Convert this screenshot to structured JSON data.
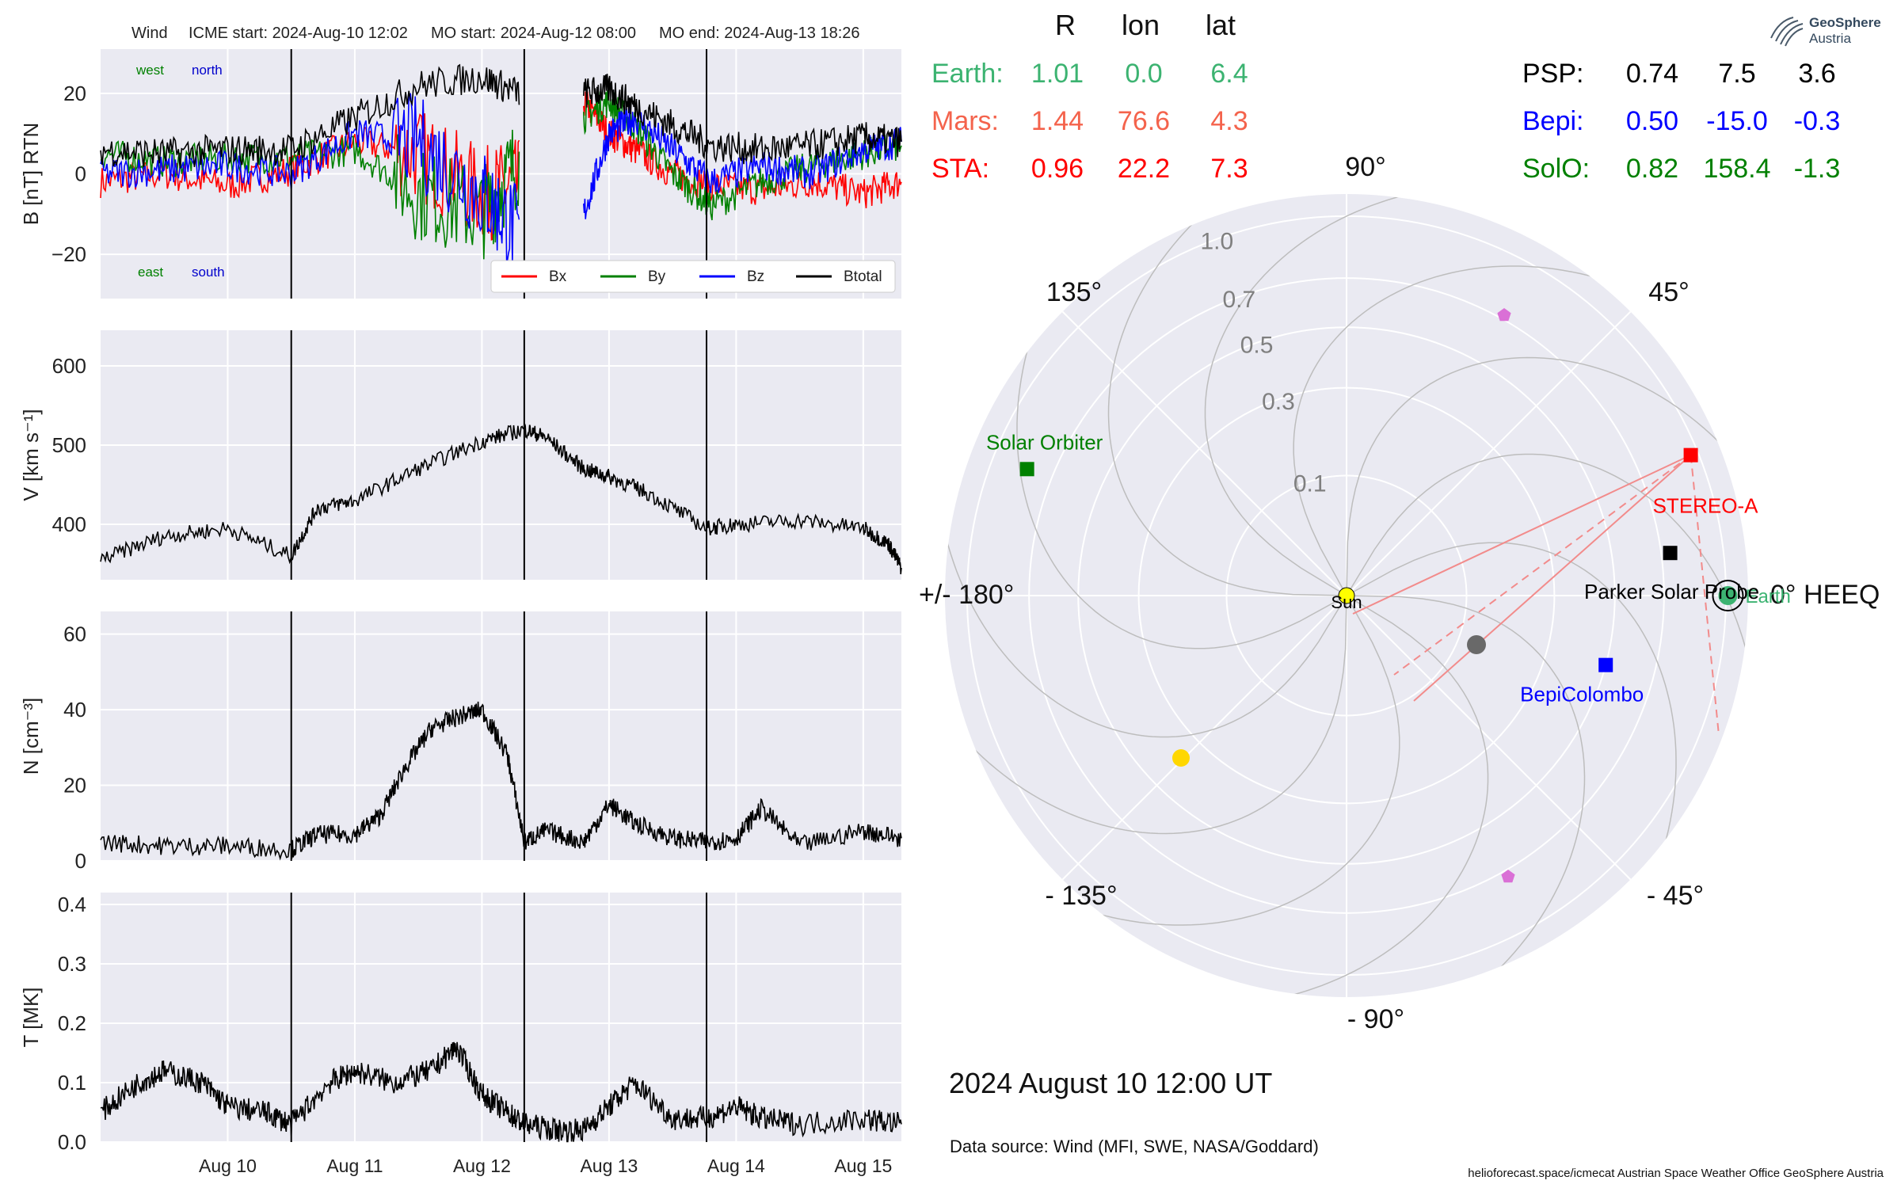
{
  "header": {
    "spacecraft": "Wind",
    "icme_start": "ICME start: 2024-Aug-10 12:02",
    "mo_start": "MO start: 2024-Aug-12 08:00",
    "mo_end": "MO end: 2024-Aug-13 18:26"
  },
  "positions_table": {
    "columns": [
      "R",
      "lon",
      "lat"
    ],
    "left_rows": [
      {
        "name": "Earth:",
        "R": "1.01",
        "lon": "0.0",
        "lat": "6.4",
        "color": "#3cb371"
      },
      {
        "name": "Mars:",
        "R": "1.44",
        "lon": "76.6",
        "lat": "4.3",
        "color": "#f4634c"
      },
      {
        "name": "STA:",
        "R": "0.96",
        "lon": "22.2",
        "lat": "7.3",
        "color": "#ff0000"
      }
    ],
    "right_rows": [
      {
        "name": "PSP:",
        "R": "0.74",
        "lon": "7.5",
        "lat": "3.6",
        "color": "#000000"
      },
      {
        "name": "Bepi:",
        "R": "0.50",
        "lon": "-15.0",
        "lat": "-0.3",
        "color": "#0000ff"
      },
      {
        "name": "SolO:",
        "R": "0.82",
        "lon": "158.4",
        "lat": "-1.3",
        "color": "#008000"
      }
    ]
  },
  "polar_plot": {
    "angle_labels": {
      "a0": "0° HEEQ",
      "a45": "45°",
      "a90": "90°",
      "a135": "135°",
      "a180": "+/- 180°",
      "am135": "- 135°",
      "am90": "- 90°",
      "am45": "- 45°"
    },
    "radius_labels": [
      "0.1",
      "0.3",
      "0.5",
      "0.7",
      "1.0"
    ],
    "bodies": [
      {
        "label": "Sun",
        "r": 0.0,
        "lon": 0,
        "color": "#ffff00",
        "marker": "circle"
      },
      {
        "label": "Earth",
        "r": 1.01,
        "lon": 0.0,
        "color": "#3cb371",
        "marker": "circle"
      },
      {
        "label": "STEREO-A",
        "r": 0.96,
        "lon": 22.2,
        "color": "#ff0000",
        "marker": "square"
      },
      {
        "label": "Parker Solar Probe",
        "r": 0.74,
        "lon": 7.5,
        "color": "#000000",
        "marker": "square"
      },
      {
        "label": "BepiColombo",
        "r": 0.5,
        "lon": -15.0,
        "color": "#0000ff",
        "marker": "square"
      },
      {
        "label": "Solar Orbiter",
        "r": 0.82,
        "lon": 158.4,
        "color": "#008000",
        "marker": "square"
      }
    ],
    "date_label": "2024 August 10  12:00 UT",
    "data_source": "Data source: Wind (MFI, SWE, NASA/Goddard)"
  },
  "footer": {
    "text": "helioforecast.space/icmecat   Austrian Space Weather Office   GeoSphere Austria"
  },
  "logo": {
    "line1": "GeoSphere",
    "line2": "Austria"
  },
  "chart_data": [
    {
      "type": "line",
      "ylabel": "B [nT] RTN",
      "ylim": [
        -31,
        31
      ],
      "yticks": [
        -20,
        0,
        20
      ],
      "xlim": [
        0,
        6.3
      ],
      "vlines": [
        1.5,
        3.333,
        4.767
      ],
      "corner_labels": {
        "west": "west",
        "north": "north",
        "east": "east",
        "south": "south"
      },
      "legend": [
        "Bx",
        "By",
        "Bz",
        "Btotal"
      ],
      "series": [
        {
          "name": "Bx",
          "color": "#ff0000",
          "x": [
            0,
            0.5,
            1.0,
            1.5,
            2.0,
            2.5,
            3.0,
            3.3,
            3.6,
            3.8,
            4.0,
            4.2,
            4.5,
            4.8,
            5.2,
            5.6,
            6.0,
            6.3
          ],
          "y": [
            -2,
            0,
            -3,
            1,
            8,
            5,
            -5,
            -3,
            null,
            18,
            10,
            6,
            0,
            -3,
            -4,
            -2,
            -5,
            -2
          ]
        },
        {
          "name": "By",
          "color": "#008000",
          "x": [
            0,
            0.5,
            1.0,
            1.5,
            2.0,
            2.5,
            3.0,
            3.3,
            3.6,
            3.8,
            4.0,
            4.2,
            4.5,
            4.8,
            5.2,
            5.6,
            6.0,
            6.3
          ],
          "y": [
            5,
            3,
            4,
            4,
            6,
            -5,
            -10,
            4,
            null,
            14,
            18,
            12,
            0,
            -8,
            -2,
            2,
            5,
            7
          ]
        },
        {
          "name": "Bz",
          "color": "#0000ff",
          "x": [
            0,
            0.5,
            1.0,
            1.5,
            2.0,
            2.5,
            3.0,
            3.3,
            3.6,
            3.8,
            4.0,
            4.2,
            4.5,
            4.8,
            5.2,
            5.6,
            6.0,
            6.3
          ],
          "y": [
            0,
            1,
            2,
            0,
            10,
            8,
            -5,
            -15,
            null,
            -10,
            10,
            14,
            6,
            -2,
            2,
            0,
            6,
            8
          ]
        },
        {
          "name": "Btotal",
          "color": "#000000",
          "x": [
            0,
            0.5,
            1.0,
            1.5,
            2.0,
            2.5,
            3.0,
            3.3,
            3.6,
            3.8,
            4.0,
            4.2,
            4.5,
            4.8,
            5.2,
            5.6,
            6.0,
            6.3
          ],
          "y": [
            6,
            5,
            6,
            6,
            14,
            22,
            24,
            20,
            null,
            20,
            21,
            17,
            12,
            7,
            6,
            7,
            9,
            8
          ]
        }
      ]
    },
    {
      "type": "line",
      "ylabel": "V [km s⁻¹]",
      "ylim": [
        330,
        645
      ],
      "yticks": [
        400,
        500,
        600
      ],
      "xlim": [
        0,
        6.3
      ],
      "vlines": [
        1.5,
        3.333,
        4.767
      ],
      "series": [
        {
          "name": "V",
          "color": "#000000",
          "x": [
            0,
            0.5,
            1.0,
            1.5,
            1.7,
            2.0,
            2.5,
            3.0,
            3.333,
            3.5,
            3.8,
            4.0,
            4.3,
            4.767,
            5.0,
            5.5,
            6.0,
            6.2,
            6.3
          ],
          "y": [
            355,
            385,
            395,
            360,
            420,
            430,
            470,
            505,
            520,
            510,
            470,
            460,
            440,
            395,
            400,
            405,
            395,
            375,
            345
          ]
        }
      ]
    },
    {
      "type": "line",
      "ylabel": "N [cm⁻³]",
      "ylim": [
        0,
        66
      ],
      "yticks": [
        0,
        20,
        40,
        60
      ],
      "xlim": [
        0,
        6.3
      ],
      "vlines": [
        1.5,
        3.333,
        4.767
      ],
      "series": [
        {
          "name": "N",
          "color": "#000000",
          "x": [
            0,
            0.5,
            1.0,
            1.5,
            1.7,
            2.0,
            2.2,
            2.4,
            2.6,
            2.8,
            3.0,
            3.2,
            3.333,
            3.5,
            3.8,
            4.0,
            4.2,
            4.5,
            4.767,
            5.0,
            5.2,
            5.5,
            6.0,
            6.3
          ],
          "y": [
            5,
            4,
            4,
            3,
            7,
            7,
            12,
            25,
            35,
            38,
            40,
            28,
            5,
            8,
            5,
            15,
            10,
            6,
            5,
            6,
            14,
            4,
            8,
            6
          ]
        }
      ]
    },
    {
      "type": "line",
      "ylabel": "T [MK]",
      "ylim": [
        0,
        0.42
      ],
      "yticks": [
        0.0,
        0.1,
        0.2,
        0.3,
        0.4
      ],
      "xlim": [
        0,
        6.3
      ],
      "xticks": [
        {
          "x": 1.0,
          "label": "Aug 10"
        },
        {
          "x": 2.0,
          "label": "Aug 11"
        },
        {
          "x": 3.0,
          "label": "Aug 12"
        },
        {
          "x": 4.0,
          "label": "Aug 13"
        },
        {
          "x": 5.0,
          "label": "Aug 14"
        },
        {
          "x": 6.0,
          "label": "Aug 15"
        }
      ],
      "vlines": [
        1.5,
        3.333,
        4.767
      ],
      "series": [
        {
          "name": "T",
          "color": "#000000",
          "x": [
            0,
            0.3,
            0.5,
            0.8,
            1.0,
            1.3,
            1.5,
            1.8,
            2.0,
            2.3,
            2.6,
            2.8,
            3.0,
            3.2,
            3.333,
            3.6,
            3.8,
            4.0,
            4.2,
            4.5,
            4.767,
            5.0,
            5.2,
            5.5,
            6.0,
            6.3
          ],
          "y": [
            0.05,
            0.1,
            0.12,
            0.1,
            0.06,
            0.05,
            0.03,
            0.1,
            0.12,
            0.1,
            0.12,
            0.16,
            0.08,
            0.05,
            0.03,
            0.02,
            0.02,
            0.06,
            0.1,
            0.04,
            0.04,
            0.06,
            0.04,
            0.03,
            0.04,
            0.03
          ]
        }
      ]
    }
  ]
}
